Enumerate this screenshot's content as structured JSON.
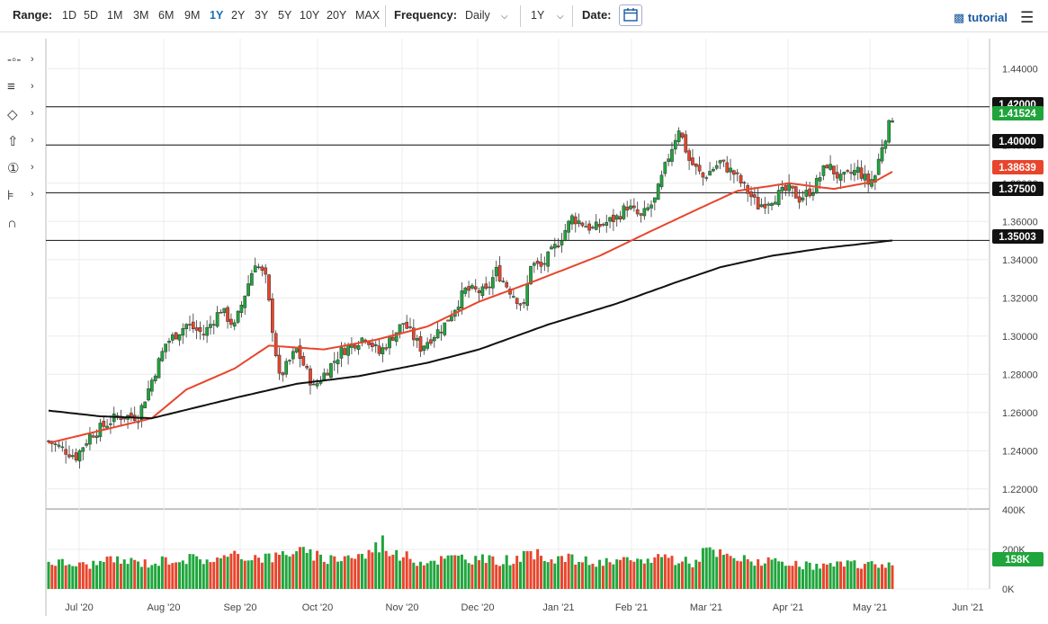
{
  "toolbar": {
    "range_label": "Range:",
    "ranges": [
      "1D",
      "5D",
      "1M",
      "3M",
      "6M",
      "9M",
      "1Y",
      "2Y",
      "3Y",
      "5Y",
      "10Y",
      "20Y",
      "MAX"
    ],
    "active_range": "1Y",
    "frequency_label": "Frequency:",
    "frequency_value": "Daily",
    "period_value": "1Y",
    "date_label": "Date:",
    "tutorial_label": "tutorial"
  },
  "tools": [
    {
      "icon": "crosshair-line-icon",
      "glyph": "-◦-"
    },
    {
      "icon": "fibonacci-icon",
      "glyph": "≡"
    },
    {
      "icon": "shape-icon",
      "glyph": "◇"
    },
    {
      "icon": "arrow-up-icon",
      "glyph": "⇧"
    },
    {
      "icon": "number-marker-icon",
      "glyph": "①"
    },
    {
      "icon": "measure-tool-icon",
      "glyph": "⊧"
    },
    {
      "icon": "magnet-icon",
      "glyph": "∩"
    }
  ],
  "colors": {
    "up": "#1fa53c",
    "down": "#e8452c",
    "ma50": "#e8452c",
    "ma200": "#111111",
    "price_badge": "#1fa53c",
    "ma_badge": "#e8452c",
    "level_badge": "#111111"
  },
  "chart_data": {
    "type": "candlestick",
    "x_ticks": [
      "Jul '20",
      "Aug '20",
      "Sep '20",
      "Oct '20",
      "Nov '20",
      "Dec '20",
      "Jan '21",
      "Feb '21",
      "Mar '21",
      "Apr '21",
      "May '21",
      "Jun '21"
    ],
    "y_ticks": [
      "1.44000",
      "1.42000",
      "1.40000",
      "1.38000",
      "1.36000",
      "1.34000",
      "1.32000",
      "1.30000",
      "1.28000",
      "1.26000",
      "1.24000",
      "1.22000"
    ],
    "ylim": [
      1.21,
      1.45
    ],
    "volume_ticks": [
      "400K",
      "200K",
      "0K"
    ],
    "volume_ylim": [
      0,
      400000
    ],
    "horizontal_levels": [
      1.42,
      1.4,
      1.375,
      1.35003
    ],
    "price_labels": [
      {
        "text": "1.42000",
        "kind": "level"
      },
      {
        "text": "1.41524",
        "kind": "price"
      },
      {
        "text": "1.40000",
        "kind": "level"
      },
      {
        "text": "1.38639",
        "kind": "ma50"
      },
      {
        "text": "1.37500",
        "kind": "level"
      },
      {
        "text": "1.35003",
        "kind": "level"
      }
    ],
    "volume_label": "158K",
    "close_anchors": [
      [
        0,
        1.245
      ],
      [
        8,
        1.237
      ],
      [
        12,
        1.248
      ],
      [
        20,
        1.258
      ],
      [
        26,
        1.258
      ],
      [
        34,
        1.296
      ],
      [
        40,
        1.306
      ],
      [
        45,
        1.301
      ],
      [
        50,
        1.314
      ],
      [
        54,
        1.305
      ],
      [
        60,
        1.339
      ],
      [
        63,
        1.33
      ],
      [
        67,
        1.278
      ],
      [
        72,
        1.293
      ],
      [
        77,
        1.273
      ],
      [
        85,
        1.292
      ],
      [
        92,
        1.3
      ],
      [
        96,
        1.291
      ],
      [
        103,
        1.307
      ],
      [
        108,
        1.294
      ],
      [
        115,
        1.306
      ],
      [
        121,
        1.324
      ],
      [
        127,
        1.323
      ],
      [
        130,
        1.334
      ],
      [
        134,
        1.324
      ],
      [
        138,
        1.315
      ],
      [
        140,
        1.338
      ],
      [
        143,
        1.336
      ],
      [
        148,
        1.349
      ],
      [
        152,
        1.362
      ],
      [
        158,
        1.356
      ],
      [
        165,
        1.362
      ],
      [
        168,
        1.368
      ],
      [
        172,
        1.362
      ],
      [
        176,
        1.371
      ],
      [
        180,
        1.394
      ],
      [
        183,
        1.409
      ],
      [
        186,
        1.392
      ],
      [
        190,
        1.383
      ],
      [
        195,
        1.391
      ],
      [
        199,
        1.385
      ],
      [
        202,
        1.378
      ],
      [
        206,
        1.368
      ],
      [
        212,
        1.374
      ],
      [
        215,
        1.377
      ],
      [
        218,
        1.372
      ],
      [
        222,
        1.377
      ],
      [
        226,
        1.39
      ],
      [
        230,
        1.382
      ],
      [
        235,
        1.387
      ],
      [
        238,
        1.38
      ],
      [
        240,
        1.384
      ],
      [
        242,
        1.4
      ],
      [
        245,
        1.415
      ]
    ],
    "volume_anchors": [
      [
        0,
        140000
      ],
      [
        10,
        120000
      ],
      [
        20,
        145000
      ],
      [
        30,
        130000
      ],
      [
        36,
        155000
      ],
      [
        50,
        150000
      ],
      [
        56,
        170000
      ],
      [
        60,
        165000
      ],
      [
        66,
        160000
      ],
      [
        71,
        200000
      ],
      [
        80,
        150000
      ],
      [
        86,
        165000
      ],
      [
        92,
        170000
      ],
      [
        97,
        240000
      ],
      [
        100,
        180000
      ],
      [
        108,
        140000
      ],
      [
        120,
        160000
      ],
      [
        130,
        140000
      ],
      [
        142,
        170000
      ],
      [
        152,
        150000
      ],
      [
        160,
        130000
      ],
      [
        172,
        140000
      ],
      [
        178,
        170000
      ],
      [
        184,
        140000
      ],
      [
        188,
        135000
      ],
      [
        190,
        195000
      ],
      [
        200,
        150000
      ],
      [
        208,
        140000
      ],
      [
        214,
        120000
      ],
      [
        222,
        115000
      ],
      [
        230,
        120000
      ],
      [
        240,
        125000
      ],
      [
        245,
        130000
      ]
    ],
    "ma50_anchors": [
      [
        0,
        1.244
      ],
      [
        30,
        1.257
      ],
      [
        40,
        1.272
      ],
      [
        54,
        1.283
      ],
      [
        64,
        1.295
      ],
      [
        80,
        1.293
      ],
      [
        95,
        1.298
      ],
      [
        110,
        1.305
      ],
      [
        125,
        1.318
      ],
      [
        140,
        1.328
      ],
      [
        160,
        1.342
      ],
      [
        175,
        1.355
      ],
      [
        188,
        1.366
      ],
      [
        200,
        1.376
      ],
      [
        215,
        1.38
      ],
      [
        228,
        1.377
      ],
      [
        240,
        1.381
      ],
      [
        245,
        1.386
      ]
    ],
    "ma200_anchors": [
      [
        0,
        1.261
      ],
      [
        15,
        1.258
      ],
      [
        30,
        1.257
      ],
      [
        55,
        1.268
      ],
      [
        72,
        1.275
      ],
      [
        90,
        1.279
      ],
      [
        110,
        1.286
      ],
      [
        125,
        1.293
      ],
      [
        145,
        1.306
      ],
      [
        165,
        1.317
      ],
      [
        182,
        1.328
      ],
      [
        195,
        1.336
      ],
      [
        210,
        1.342
      ],
      [
        225,
        1.346
      ],
      [
        245,
        1.35
      ]
    ],
    "n_bars": 246
  }
}
